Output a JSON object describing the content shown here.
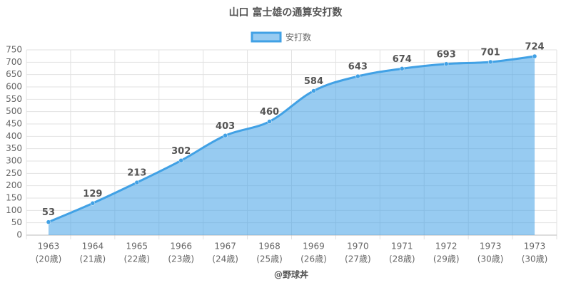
{
  "chart_data": {
    "type": "area",
    "title": "山口 富士雄の通算安打数",
    "categories": [
      [
        "1963",
        "(20歳)"
      ],
      [
        "1964",
        "(21歳)"
      ],
      [
        "1965",
        "(22歳)"
      ],
      [
        "1966",
        "(23歳)"
      ],
      [
        "1967",
        "(24歳)"
      ],
      [
        "1968",
        "(25歳)"
      ],
      [
        "1969",
        "(26歳)"
      ],
      [
        "1970",
        "(27歳)"
      ],
      [
        "1971",
        "(28歳)"
      ],
      [
        "1972",
        "(29歳)"
      ],
      [
        "1973",
        "(30歳)"
      ],
      [
        "1973",
        "(30歳)"
      ]
    ],
    "series": [
      {
        "name": "安打数",
        "color": "#41a1e5",
        "values": [
          53,
          129,
          213,
          302,
          403,
          460,
          584,
          643,
          674,
          693,
          701,
          724
        ]
      }
    ],
    "ylim": [
      0,
      750
    ],
    "yticks": [
      0,
      50,
      100,
      150,
      200,
      250,
      300,
      350,
      400,
      450,
      500,
      550,
      600,
      650,
      700,
      750
    ],
    "grid": true,
    "legend": "top",
    "footer": "@野球丼"
  }
}
